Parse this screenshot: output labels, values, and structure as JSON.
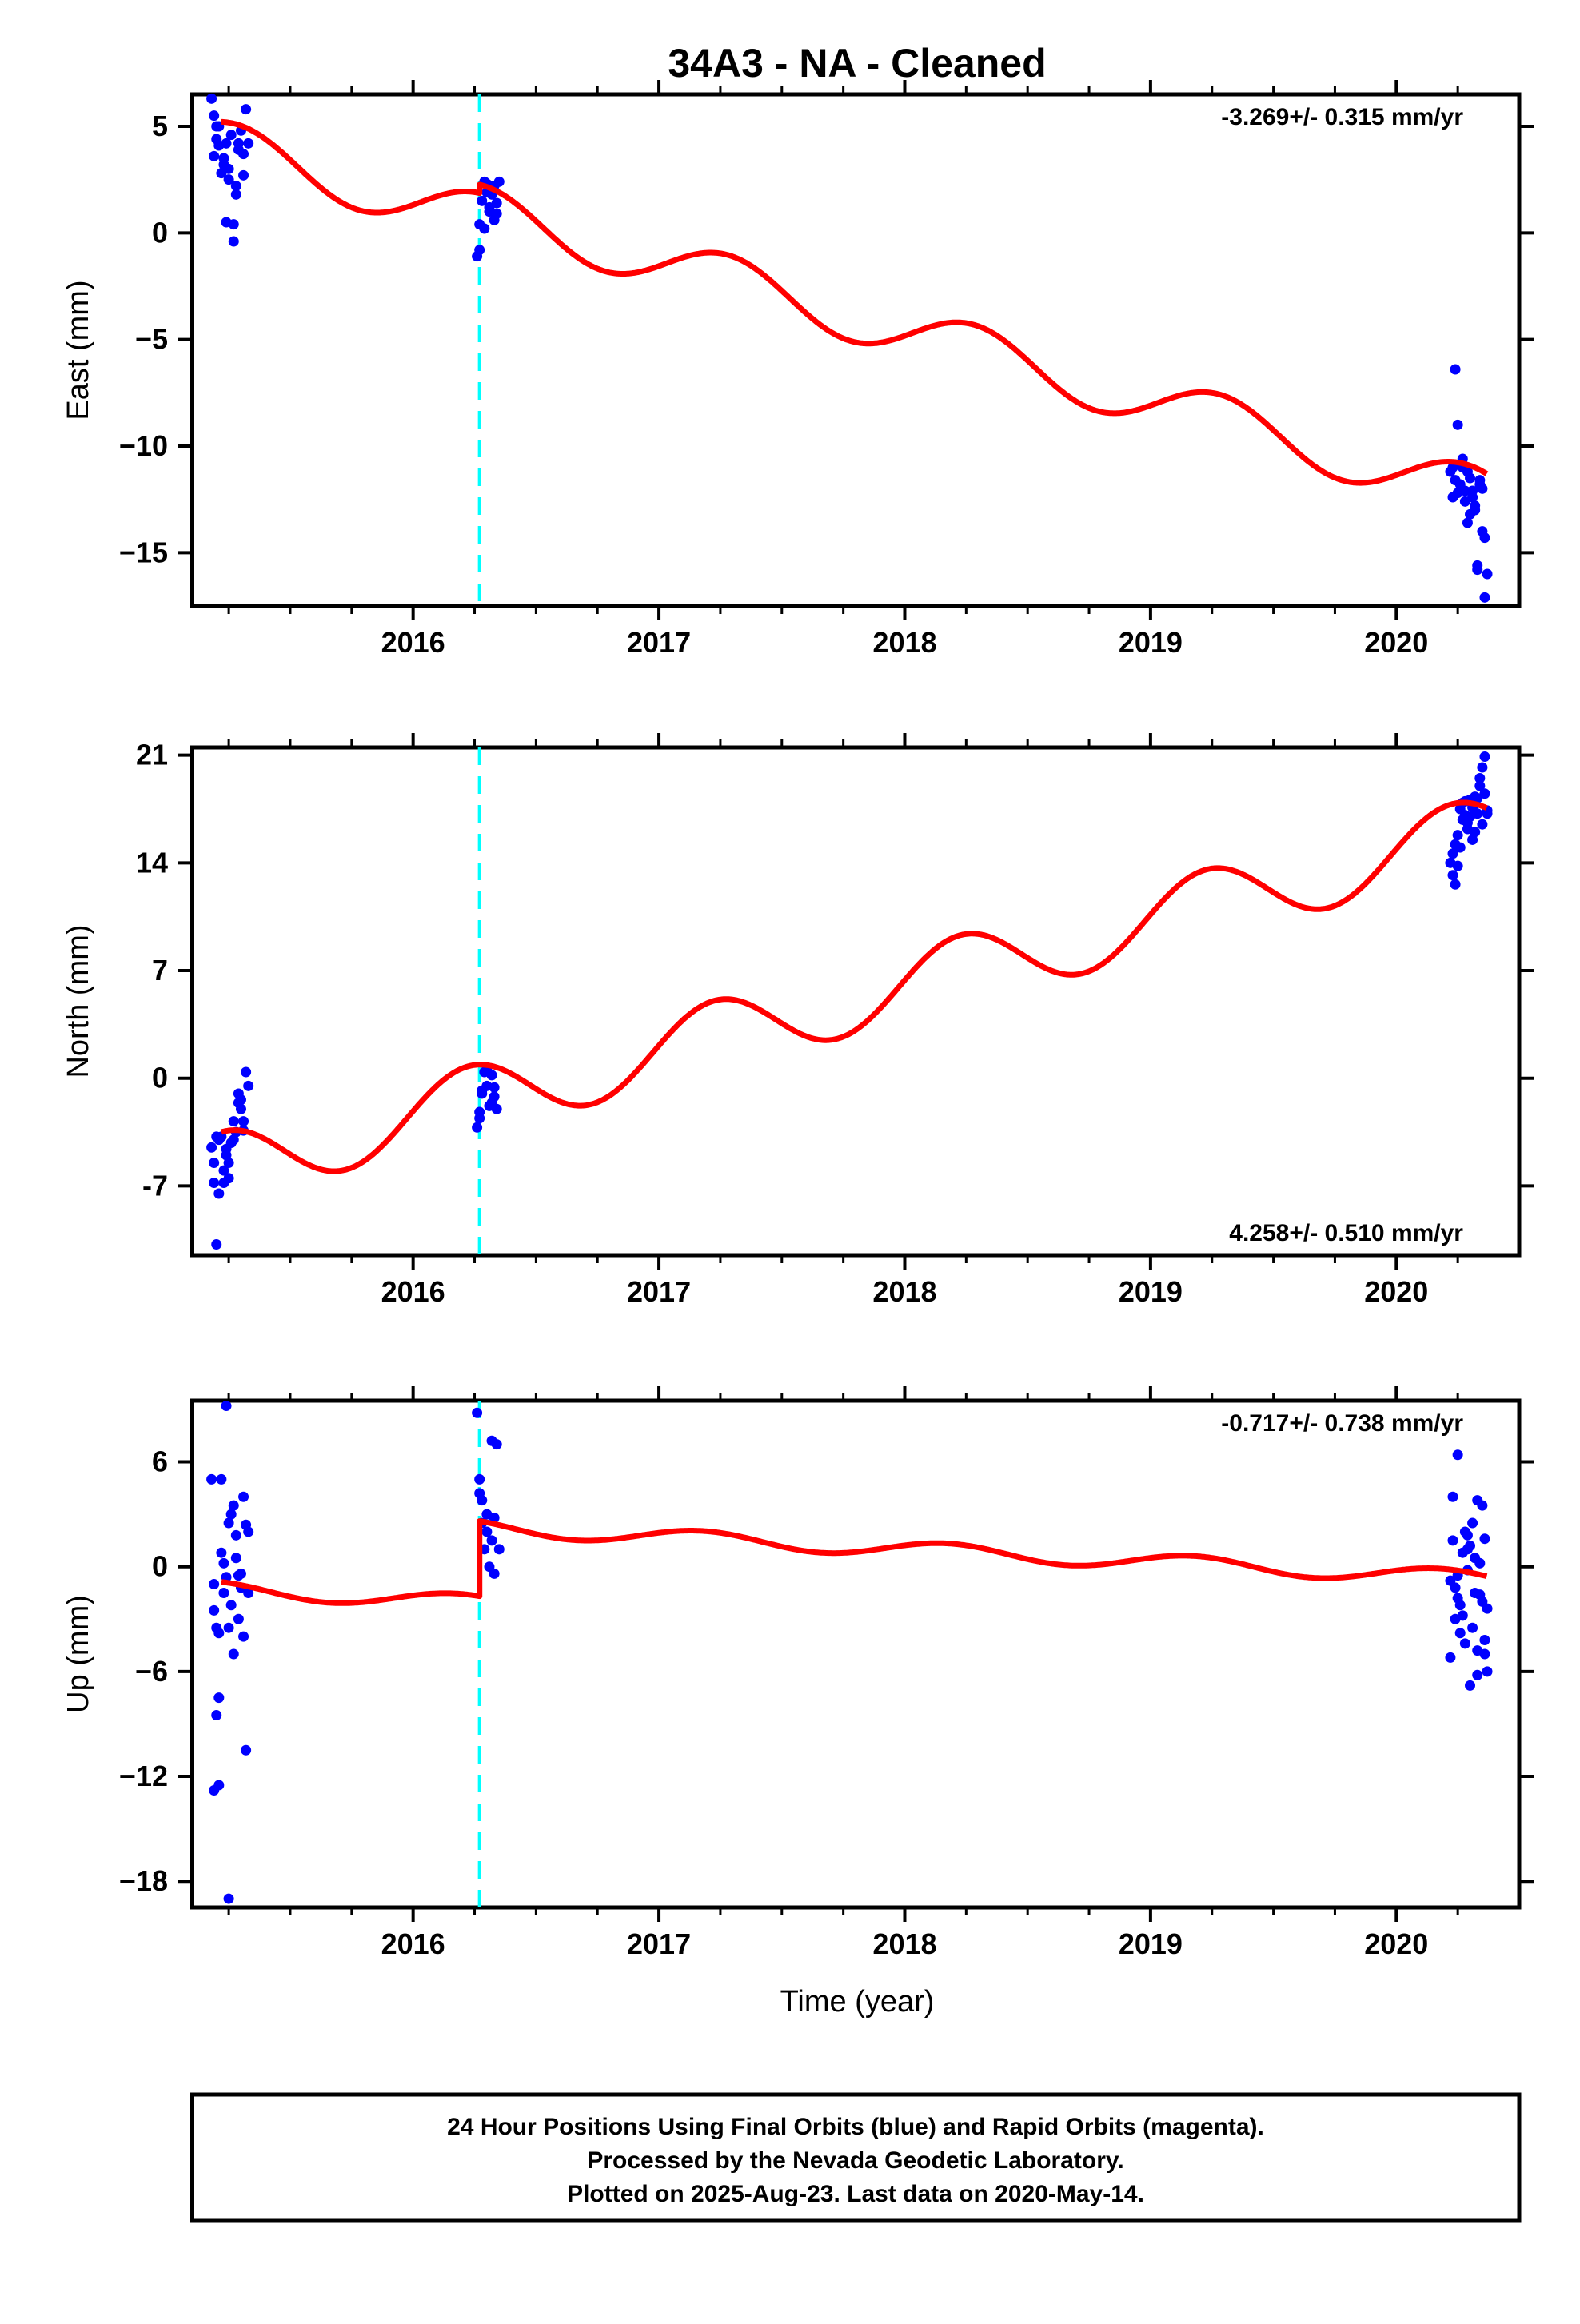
{
  "title": "34A3  - NA - Cleaned",
  "xlabel": "Time (year)",
  "colors": {
    "data": "#0000ff",
    "model": "#ff0000",
    "step": "#00ffff",
    "frame": "#000000"
  },
  "x_range": [
    2015.1,
    2020.5
  ],
  "x_ticks": [
    2016,
    2017,
    2018,
    2019,
    2020
  ],
  "step_time": 2016.27,
  "footer": [
    "24 Hour Positions Using Final Orbits (blue) and Rapid Orbits (magenta).",
    "Processed by the Nevada Geodetic Laboratory.",
    "Plotted on 2025-Aug-23. Last data on 2020-May-14."
  ],
  "chart_data": [
    {
      "type": "scatter",
      "ylabel": "East (mm)",
      "rate": "-3.269+/- 0.315 mm/yr",
      "rate_pos": "top-right",
      "ylim": [
        -17.5,
        6.5
      ],
      "yticks": [
        5,
        0,
        -5,
        -10,
        -15
      ],
      "ytick_labels": [
        "5",
        "0",
        "−5",
        "−10",
        "−15"
      ],
      "model": {
        "t0": 2015.22,
        "t1": 2020.37,
        "rate": -3.269,
        "offset": 4.1,
        "amp": 1.2,
        "phase": -0.2,
        "steps": [
          {
            "t": 2016.27,
            "dy": 0.4
          }
        ]
      },
      "series": [
        {
          "x": [
            2015.18,
            2015.19,
            2015.2,
            2015.21,
            2015.22,
            2015.23,
            2015.24,
            2015.25,
            2015.26,
            2015.27,
            2015.28,
            2015.29,
            2015.3,
            2015.31,
            2015.32,
            2015.33,
            2015.19,
            2015.21,
            2015.23,
            2015.25,
            2015.27,
            2015.29,
            2015.31,
            2015.2,
            2015.24,
            2015.28
          ],
          "y": [
            6.3,
            5.5,
            4.4,
            5.0,
            2.8,
            3.5,
            4.2,
            3.0,
            4.6,
            0.4,
            2.2,
            4.2,
            4.8,
            2.7,
            5.8,
            4.2,
            3.6,
            4.1,
            3.2,
            2.5,
            -0.4,
            3.9,
            3.7,
            5.0,
            0.5,
            1.8
          ]
        },
        {
          "x": [
            2016.26,
            2016.27,
            2016.28,
            2016.29,
            2016.3,
            2016.31,
            2016.32,
            2016.33,
            2016.34,
            2016.35,
            2016.27,
            2016.29,
            2016.31,
            2016.33,
            2016.3,
            2016.34
          ],
          "y": [
            -1.1,
            0.4,
            1.5,
            2.4,
            2.3,
            1.0,
            1.8,
            2.2,
            0.9,
            2.4,
            -0.8,
            0.2,
            1.2,
            0.6,
            1.9,
            1.4
          ]
        },
        {
          "x": [
            2020.22,
            2020.23,
            2020.24,
            2020.25,
            2020.26,
            2020.27,
            2020.28,
            2020.29,
            2020.3,
            2020.31,
            2020.32,
            2020.33,
            2020.34,
            2020.35,
            2020.36,
            2020.37,
            2020.23,
            2020.25,
            2020.27,
            2020.29,
            2020.31,
            2020.33,
            2020.35,
            2020.24,
            2020.28,
            2020.32,
            2020.36,
            2020.26,
            2020.3,
            2020.34
          ],
          "y": [
            -11.2,
            -12.4,
            -6.4,
            -9.0,
            -11.8,
            -10.6,
            -12.6,
            -11.2,
            -13.2,
            -12.1,
            -12.8,
            -15.8,
            -11.6,
            -14.0,
            -17.1,
            -16.0,
            -11.0,
            -12.2,
            -11.0,
            -13.6,
            -12.4,
            -15.6,
            -12.0,
            -11.6,
            -12.1,
            -13.0,
            -14.3,
            -10.9,
            -11.5,
            -11.8
          ]
        }
      ]
    },
    {
      "type": "scatter",
      "ylabel": "North (mm)",
      "rate": "4.258+/- 0.510 mm/yr",
      "rate_pos": "bottom-right",
      "ylim": [
        -11.5,
        21.5
      ],
      "yticks": [
        21,
        14,
        7,
        0,
        -7
      ],
      "ytick_labels": [
        "21",
        "14",
        "7",
        "0",
        "-7"
      ],
      "model": {
        "t0": 2015.22,
        "t1": 2020.37,
        "rate": 4.258,
        "offset": -5.8,
        "amp": 2.3,
        "phase": 0.15,
        "steps": [
          {
            "t": 2016.27,
            "dy": 0.0
          }
        ]
      },
      "series": [
        {
          "x": [
            2015.18,
            2015.19,
            2015.2,
            2015.21,
            2015.22,
            2015.23,
            2015.24,
            2015.25,
            2015.26,
            2015.27,
            2015.28,
            2015.29,
            2015.3,
            2015.31,
            2015.32,
            2015.33,
            2015.19,
            2015.21,
            2015.23,
            2015.25,
            2015.27,
            2015.29,
            2015.31,
            2015.2,
            2015.24,
            2015.3
          ],
          "y": [
            -4.5,
            -6.8,
            -10.8,
            -7.5,
            -3.8,
            -6.0,
            -4.6,
            -5.5,
            -4.2,
            -2.8,
            -3.5,
            -1.0,
            -2.0,
            -3.4,
            0.4,
            -0.5,
            -5.5,
            -4.0,
            -6.8,
            -6.5,
            -4.0,
            -1.6,
            -2.8,
            -3.8,
            -5.0,
            -1.4
          ]
        },
        {
          "x": [
            2016.26,
            2016.27,
            2016.28,
            2016.29,
            2016.3,
            2016.31,
            2016.32,
            2016.33,
            2016.34,
            2016.28,
            2016.3,
            2016.32,
            2016.27,
            2016.33
          ],
          "y": [
            -3.2,
            -2.6,
            -1.0,
            0.4,
            -0.5,
            -1.8,
            0.2,
            -1.2,
            -2.0,
            -0.8,
            0.6,
            -1.6,
            -2.2,
            -0.6
          ]
        },
        {
          "x": [
            2020.22,
            2020.23,
            2020.24,
            2020.25,
            2020.26,
            2020.27,
            2020.28,
            2020.29,
            2020.3,
            2020.31,
            2020.32,
            2020.33,
            2020.34,
            2020.35,
            2020.36,
            2020.37,
            2020.23,
            2020.25,
            2020.27,
            2020.29,
            2020.31,
            2020.33,
            2020.35,
            2020.24,
            2020.28,
            2020.32,
            2020.36,
            2020.26,
            2020.3,
            2020.34,
            2020.37
          ],
          "y": [
            14.0,
            13.2,
            12.6,
            15.8,
            17.5,
            16.8,
            18.0,
            16.2,
            17.0,
            15.5,
            18.3,
            17.2,
            19.0,
            20.2,
            20.9,
            17.4,
            14.6,
            13.8,
            17.9,
            16.6,
            17.6,
            18.2,
            16.5,
            15.2,
            17.1,
            16.0,
            18.5,
            15.0,
            18.1,
            19.5,
            17.2
          ]
        }
      ]
    },
    {
      "type": "scatter",
      "ylabel": "Up (mm)",
      "rate": "-0.717+/- 0.738 mm/yr",
      "rate_pos": "top-right",
      "ylim": [
        -19.5,
        9.5
      ],
      "yticks": [
        6,
        0,
        -6,
        -12,
        -18
      ],
      "ytick_labels": [
        "6",
        "0",
        "−6",
        "−12",
        "−18"
      ],
      "model": {
        "t0": 2015.22,
        "t1": 2020.37,
        "rate": -0.717,
        "offset": -1.3,
        "amp": 0.45,
        "phase": 0.5,
        "steps": [
          {
            "t": 2016.27,
            "dy": 4.3
          }
        ]
      },
      "series": [
        {
          "x": [
            2015.18,
            2015.19,
            2015.2,
            2015.21,
            2015.22,
            2015.23,
            2015.24,
            2015.25,
            2015.26,
            2015.27,
            2015.28,
            2015.29,
            2015.3,
            2015.31,
            2015.32,
            2015.33,
            2015.19,
            2015.21,
            2015.23,
            2015.25,
            2015.27,
            2015.29,
            2015.31,
            2015.2,
            2015.22,
            2015.24,
            2015.26,
            2015.28,
            2015.3,
            2015.32,
            2015.19,
            2015.21,
            2015.25,
            2015.33
          ],
          "y": [
            5.0,
            -2.5,
            -8.5,
            -12.5,
            5.0,
            -1.5,
            9.2,
            -3.5,
            3.0,
            -5.0,
            0.5,
            -3.0,
            -1.2,
            4.0,
            -10.5,
            2.0,
            -12.8,
            -7.5,
            0.2,
            2.5,
            3.5,
            -0.5,
            -4.0,
            -3.5,
            0.8,
            -0.6,
            -2.2,
            1.8,
            -0.4,
            2.4,
            -1.0,
            -3.8,
            -19.0,
            -1.5
          ]
        },
        {
          "x": [
            2016.26,
            2016.27,
            2016.28,
            2016.29,
            2016.3,
            2016.31,
            2016.32,
            2016.33,
            2016.34,
            2016.28,
            2016.3,
            2016.32,
            2016.27,
            2016.33,
            2016.35
          ],
          "y": [
            8.8,
            5.0,
            2.5,
            1.0,
            3.0,
            0.0,
            7.2,
            -0.4,
            7.0,
            3.8,
            2.0,
            1.5,
            4.2,
            2.8,
            1.0
          ]
        },
        {
          "x": [
            2020.22,
            2020.23,
            2020.24,
            2020.25,
            2020.26,
            2020.27,
            2020.28,
            2020.29,
            2020.3,
            2020.31,
            2020.32,
            2020.33,
            2020.34,
            2020.35,
            2020.36,
            2020.37,
            2020.23,
            2020.25,
            2020.27,
            2020.29,
            2020.31,
            2020.33,
            2020.35,
            2020.24,
            2020.28,
            2020.32,
            2020.36,
            2020.26,
            2020.3,
            2020.34,
            2020.37,
            2020.22,
            2020.25,
            2020.29,
            2020.33,
            2020.36
          ],
          "y": [
            -5.2,
            1.5,
            -3.0,
            6.4,
            -2.2,
            0.8,
            -4.4,
            1.8,
            -6.8,
            2.5,
            -1.5,
            -6.2,
            0.2,
            3.5,
            -5.0,
            -6.0,
            4.0,
            -0.5,
            -2.8,
            1.0,
            -3.5,
            3.8,
            -2.0,
            -1.2,
            2.0,
            0.5,
            -4.2,
            -3.8,
            1.2,
            -1.6,
            -2.4,
            -0.8,
            -1.8,
            -0.2,
            -4.8,
            1.6
          ]
        }
      ]
    }
  ]
}
